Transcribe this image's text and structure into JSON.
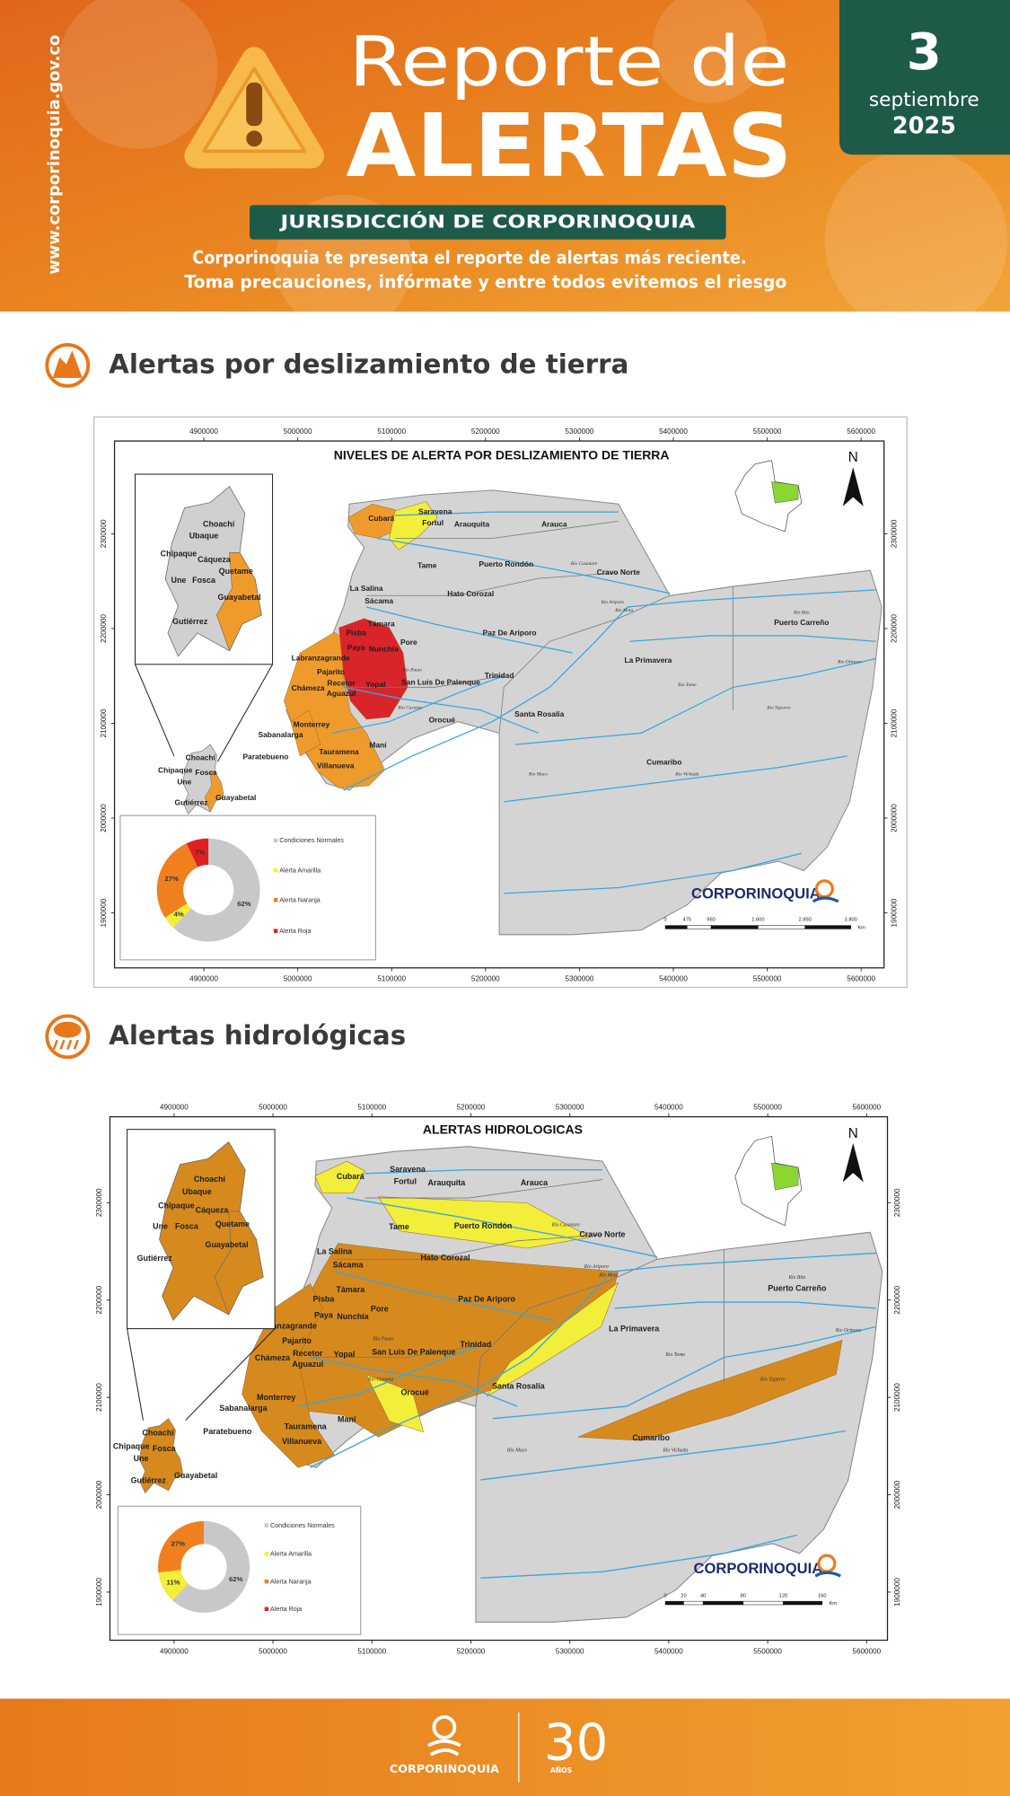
{
  "header": {
    "website": "www.corporinoquia.gov.co",
    "title_line1": "Reporte de",
    "title_line2": "ALERTAS",
    "jurisdiction": "JURISDICCIÓN DE CORPORINOQUIA",
    "intro_line1": "Corporinoquia te presenta el reporte de alertas más reciente.",
    "intro_line2": "Toma precauciones, infórmate y entre todos evitemos el riesgo",
    "date_day": "3",
    "date_month": "septiembre",
    "date_year": "2025"
  },
  "sections": [
    {
      "heading": "Alertas por deslizamiento de tierra",
      "map": {
        "title": "NIVELES DE ALERTA POR DESLIZAMIENTO DE TIERRA",
        "north": "N",
        "xticks": [
          4900000,
          5000000,
          5100000,
          5200000,
          5300000,
          5400000,
          5500000,
          5600000
        ],
        "yticks": [
          1900000,
          2000000,
          2100000,
          2200000,
          2300000
        ],
        "logo": "CORPORINOQUIA",
        "scale_labels": [
          "0",
          "475",
          "950",
          "1.600",
          "2.850",
          "3.800"
        ],
        "scale_unit": "Km",
        "places": [
          "Saravena",
          "Cubará",
          "Fortul",
          "Arauquita",
          "Arauca",
          "Tame",
          "Puerto Rondón",
          "Cravo Norte",
          "La Salina",
          "Sácama",
          "Hato Corozal",
          "Támara",
          "Pore",
          "Paz De Ariporo",
          "Pisba",
          "Paya",
          "Nunchía",
          "Labranzagrande",
          "Trinidad",
          "Pajarito",
          "San Luis De Palenque",
          "Yopal",
          "Chámeza",
          "Recetor",
          "Aguazul",
          "Orocué",
          "Santa Rosalía",
          "La Primavera",
          "Puerto Carreño",
          "Sabanalarga",
          "Monterrey",
          "Tauramena",
          "Maní",
          "Paratebueno",
          "Villanueva",
          "Cumaribo",
          "Choachí",
          "Chipaque",
          "Fosca",
          "Une",
          "Gutiérrez",
          "Guayabetal"
        ],
        "rivers": [
          "Río Casanare",
          "Río Ariporo",
          "Río Meta",
          "Río Bita",
          "Río Orinoco",
          "Río Tomo",
          "Río Tuparro",
          "Río Vichada",
          "Río Muco",
          "Río Pauto",
          "Río Cusiana"
        ],
        "inset_places": [
          "Choachí",
          "Ubaque",
          "Chipaque",
          "Cáqueza",
          "Quetame",
          "Une",
          "Fosca",
          "Guayabetal",
          "Gutiérrez"
        ],
        "legend": {
          "type": "pie",
          "categories": [
            "Condiciones Normales",
            "Alerta Amarilla",
            "Alerta Naranja",
            "Alerta Roja"
          ],
          "values": [
            62,
            4,
            27,
            7
          ],
          "value_labels": [
            "62%",
            "4%",
            "27%",
            "7%"
          ],
          "colors": [
            "#c8c8c8",
            "#f2ee3a",
            "#f07f1e",
            "#e02020"
          ]
        }
      }
    },
    {
      "heading": "Alertas hidrológicas",
      "map": {
        "title": "ALERTAS HIDROLOGICAS",
        "north": "N",
        "xticks": [
          4900000,
          5000000,
          5100000,
          5200000,
          5300000,
          5400000,
          5500000,
          5600000
        ],
        "yticks": [
          1900000,
          2000000,
          2100000,
          2200000,
          2300000
        ],
        "logo": "CORPORINOQUIA",
        "scale_labels": [
          "0",
          "20",
          "40",
          "80",
          "120",
          "160"
        ],
        "scale_unit": "Km",
        "places": [
          "Saravena",
          "Cubará",
          "Fortul",
          "Arauquita",
          "Arauca",
          "Tame",
          "Puerto Rondón",
          "Cravo Norte",
          "La Salina",
          "Sácama",
          "Hato Corozal",
          "Támara",
          "Pore",
          "Paz De Ariporo",
          "Pisba",
          "Paya",
          "Nunchía",
          "Labranzagrande",
          "Trinidad",
          "Pajarito",
          "San Luis De Palenque",
          "Yopal",
          "Chámeza",
          "Recetor",
          "Aguazul",
          "Orocué",
          "Santa Rosalía",
          "La Primavera",
          "Puerto Carreño",
          "Sabanalarga",
          "Monterrey",
          "Tauramena",
          "Maní",
          "Paratebueno",
          "Villanueva",
          "Cumaribo",
          "Choachí",
          "Chipaque",
          "Fosca",
          "Une",
          "Gutiérrez",
          "Guayabetal"
        ],
        "rivers": [
          "Río Casanare",
          "Río Ariporo",
          "Río Meta",
          "Río Bita",
          "Río Orinoco",
          "Río Tomo",
          "Río Tuparro",
          "Río Vichada",
          "Río Muco",
          "Río Pauto",
          "Río Cusiana"
        ],
        "inset_places": [
          "Choachí",
          "Ubaque",
          "Chipaque",
          "Cáqueza",
          "Quetame",
          "Une",
          "Fosca",
          "Guayabetal",
          "Gutiérrez"
        ],
        "legend": {
          "type": "pie",
          "categories": [
            "Condiciones Normales",
            "Alerta Amarilla",
            "Alerta Naranja",
            "Alerta Roja"
          ],
          "values": [
            62,
            11,
            27,
            0
          ],
          "value_labels": [
            "62%",
            "11%",
            "27%",
            null
          ],
          "colors": [
            "#c8c8c8",
            "#f2ee3a",
            "#f07f1e",
            "#e02020"
          ]
        }
      }
    }
  ],
  "footer": {
    "logo_text": "CORPORINOQUIA",
    "anniversary_number": "30",
    "anniversary_text": "AÑOS"
  }
}
